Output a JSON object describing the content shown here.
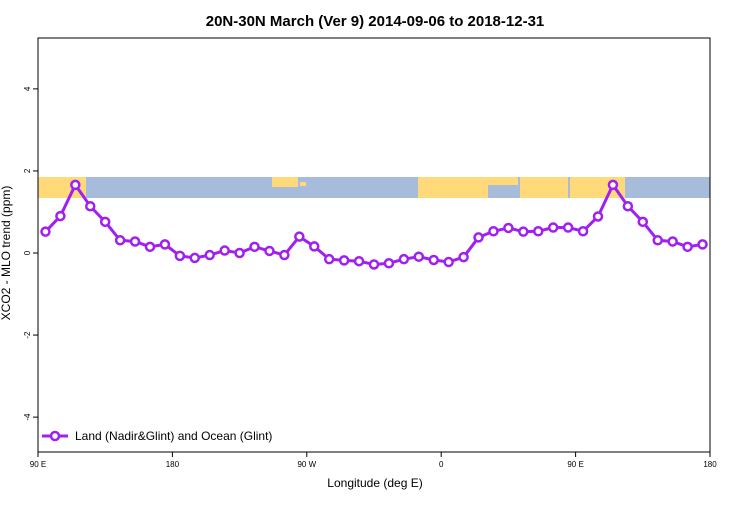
{
  "chart_data": {
    "type": "line",
    "title": "20N-30N March (Ver 9)   2014-09-06 to 2018-12-31",
    "x_label": "Longitude (deg E)",
    "y_label": "XCO2 - MLO trend (ppm)",
    "x": [
      95,
      105,
      115,
      125,
      135,
      145,
      155,
      165,
      175,
      185,
      195,
      205,
      215,
      225,
      235,
      245,
      255,
      265,
      275,
      285,
      295,
      305,
      315,
      325,
      335,
      345,
      355,
      365,
      375,
      385,
      395,
      405,
      415,
      425,
      435,
      445,
      455,
      465,
      475,
      485,
      495,
      505,
      515,
      525,
      535
    ],
    "series": [
      {
        "name": "Land (Nadir&Glint) and Ocean (Glint)",
        "color": "#a020f0",
        "values": [
          0.52,
          0.9,
          1.66,
          1.14,
          0.76,
          0.31,
          0.28,
          0.15,
          0.21,
          -0.07,
          -0.12,
          -0.05,
          0.06,
          0.0,
          0.15,
          0.05,
          -0.05,
          0.4,
          0.16,
          -0.15,
          -0.18,
          -0.2,
          -0.28,
          -0.25,
          -0.15,
          -0.09,
          -0.17,
          -0.22,
          -0.1,
          0.38,
          0.53,
          0.61,
          0.52,
          0.53,
          0.62,
          0.62,
          0.53,
          0.89,
          1.66,
          1.14,
          0.76,
          0.31,
          0.28,
          0.15,
          0.21
        ]
      }
    ],
    "xlim": [
      90,
      540
    ],
    "xticks": [
      {
        "value": 90,
        "label": "90 E"
      },
      {
        "value": 180,
        "label": "180"
      },
      {
        "value": 270,
        "label": "90 W"
      },
      {
        "value": 360,
        "label": "0"
      },
      {
        "value": 450,
        "label": "90 E"
      },
      {
        "value": 540,
        "label": "180"
      }
    ],
    "ylim": [
      -4.85,
      5.24
    ],
    "yticks": [
      -4,
      -2,
      0,
      2,
      4
    ],
    "legend": "bottom-left"
  }
}
